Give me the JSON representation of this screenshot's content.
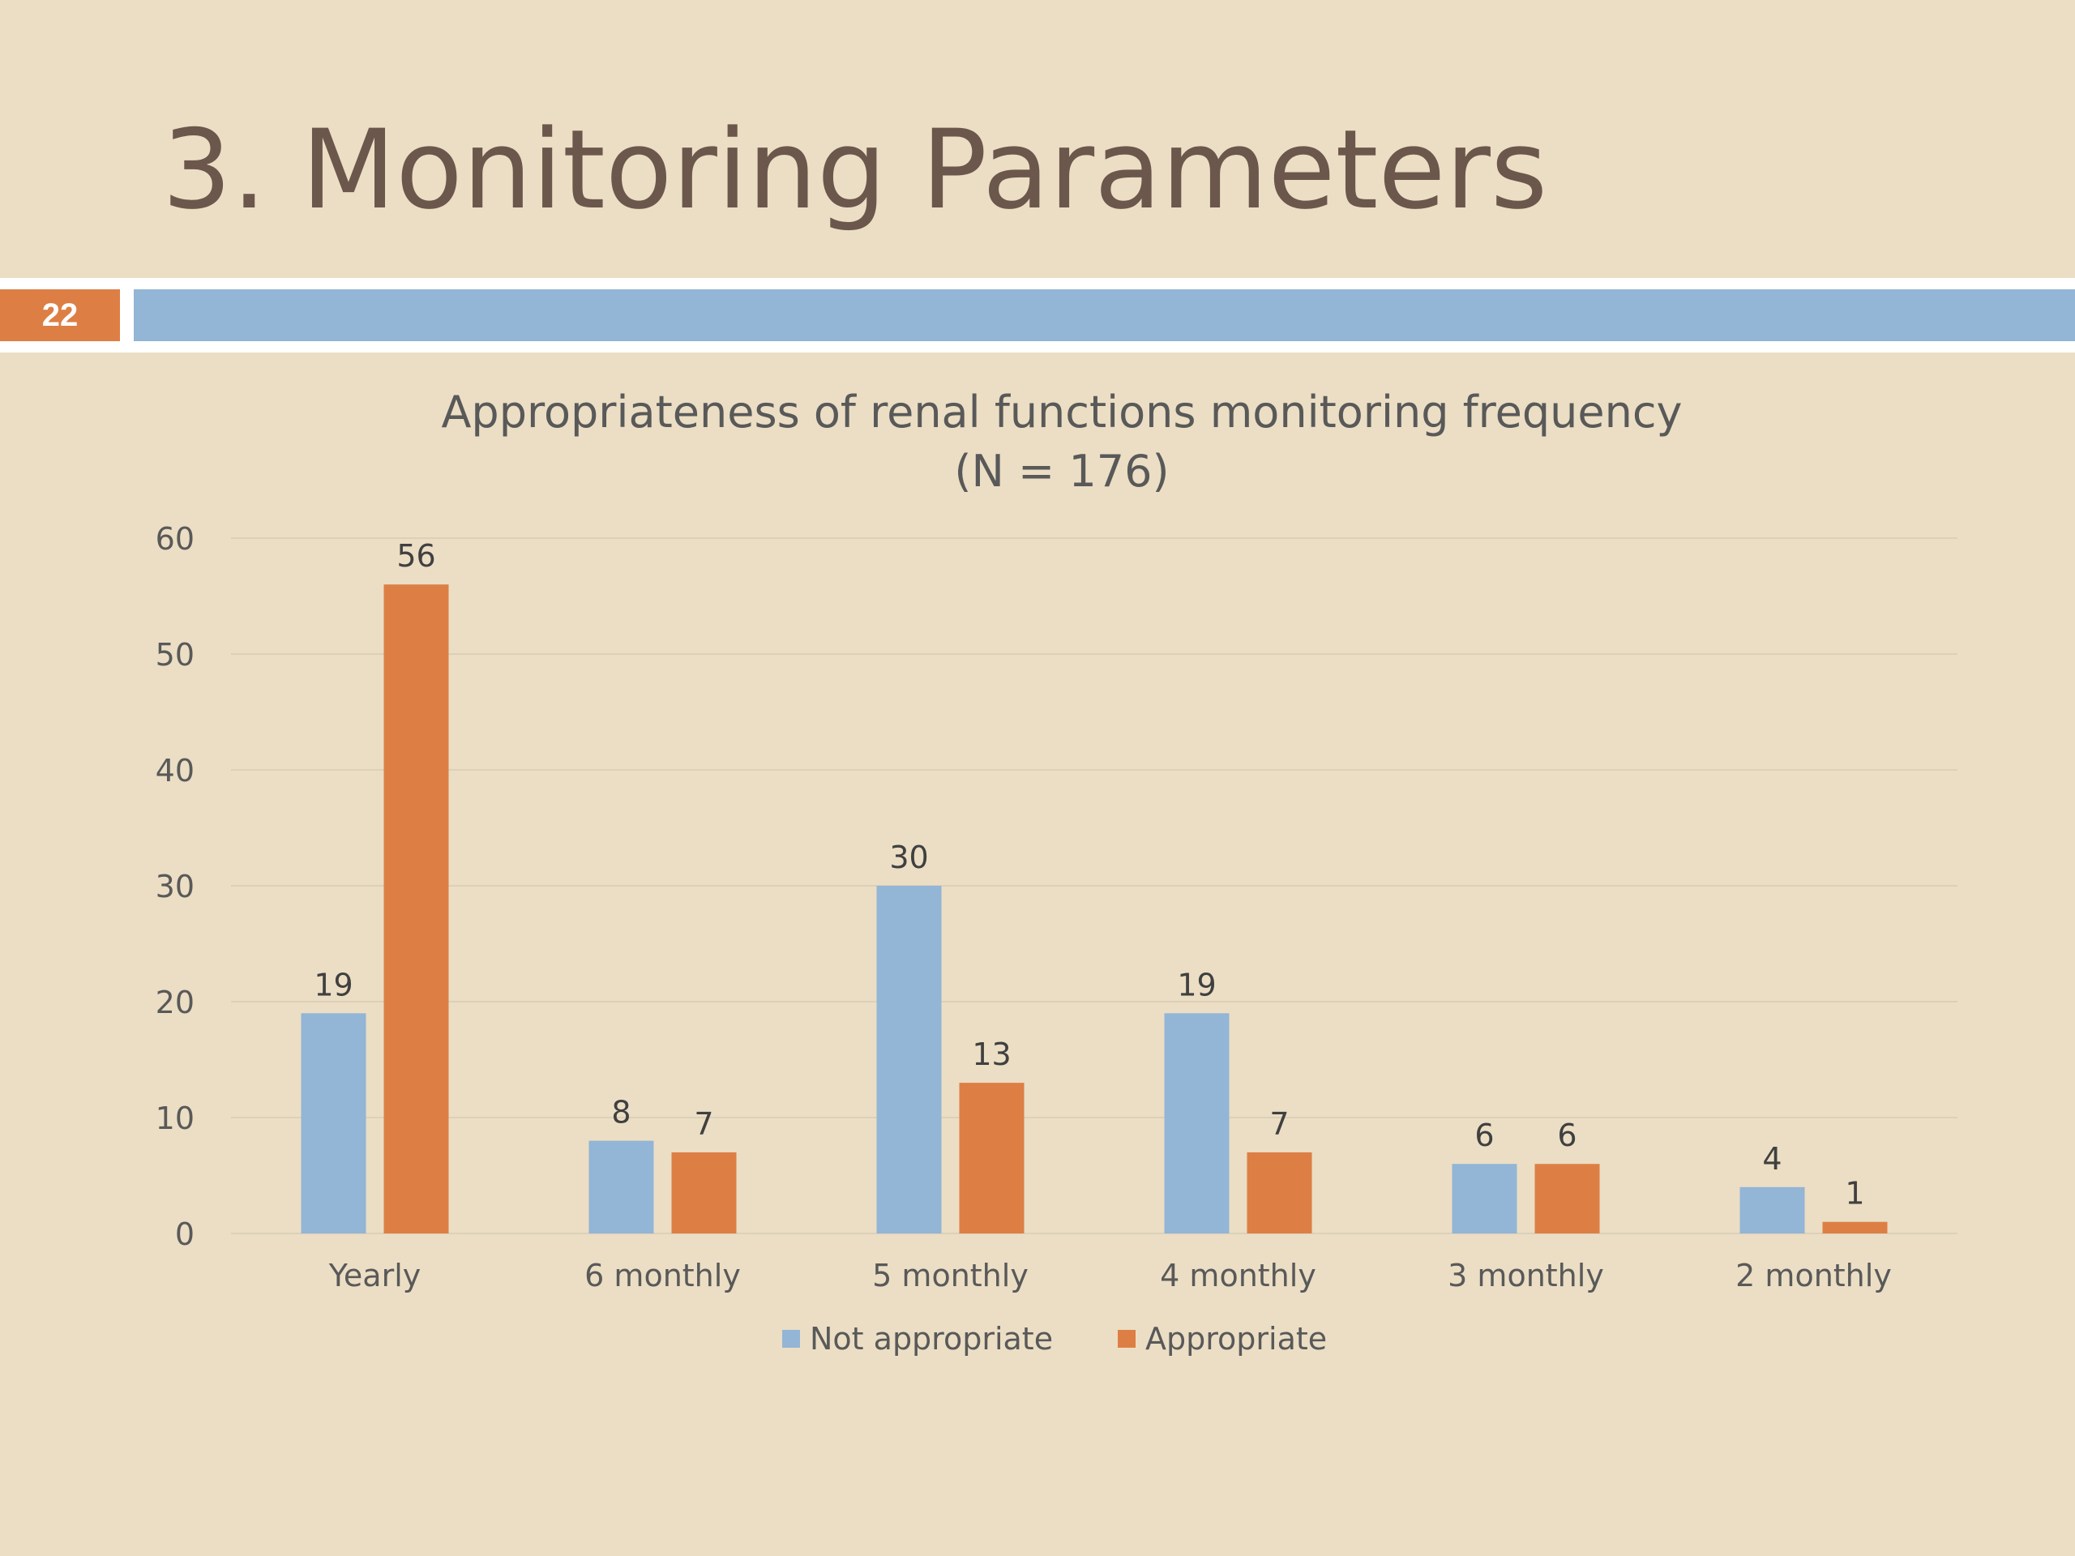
{
  "slide": {
    "title": "3. Monitoring Parameters",
    "number": "22"
  },
  "colors": {
    "background": "#ebdec4",
    "title": "#6b574b",
    "accent_orange": "#dd7f45",
    "accent_blue": "#93b5d6",
    "series_not_appropriate": "#93b5d6",
    "series_appropriate": "#dd7f45"
  },
  "chart_data": {
    "type": "bar",
    "title": "Appropriateness of renal functions monitoring frequency",
    "subtitle": "(N = 176)",
    "categories": [
      "Yearly",
      "6 monthly",
      "5 monthly",
      "4 monthly",
      "3 monthly",
      "2 monthly"
    ],
    "series": [
      {
        "name": "Not appropriate",
        "values": [
          19,
          8,
          30,
          19,
          6,
          4
        ],
        "color": "#93b5d6"
      },
      {
        "name": "Appropriate",
        "values": [
          56,
          7,
          13,
          7,
          6,
          1
        ],
        "color": "#dd7f45"
      }
    ],
    "ylim": [
      0,
      60
    ],
    "yticks": [
      0,
      10,
      20,
      30,
      40,
      50,
      60
    ],
    "grid": true,
    "data_labels": true,
    "legend": "bottom"
  }
}
